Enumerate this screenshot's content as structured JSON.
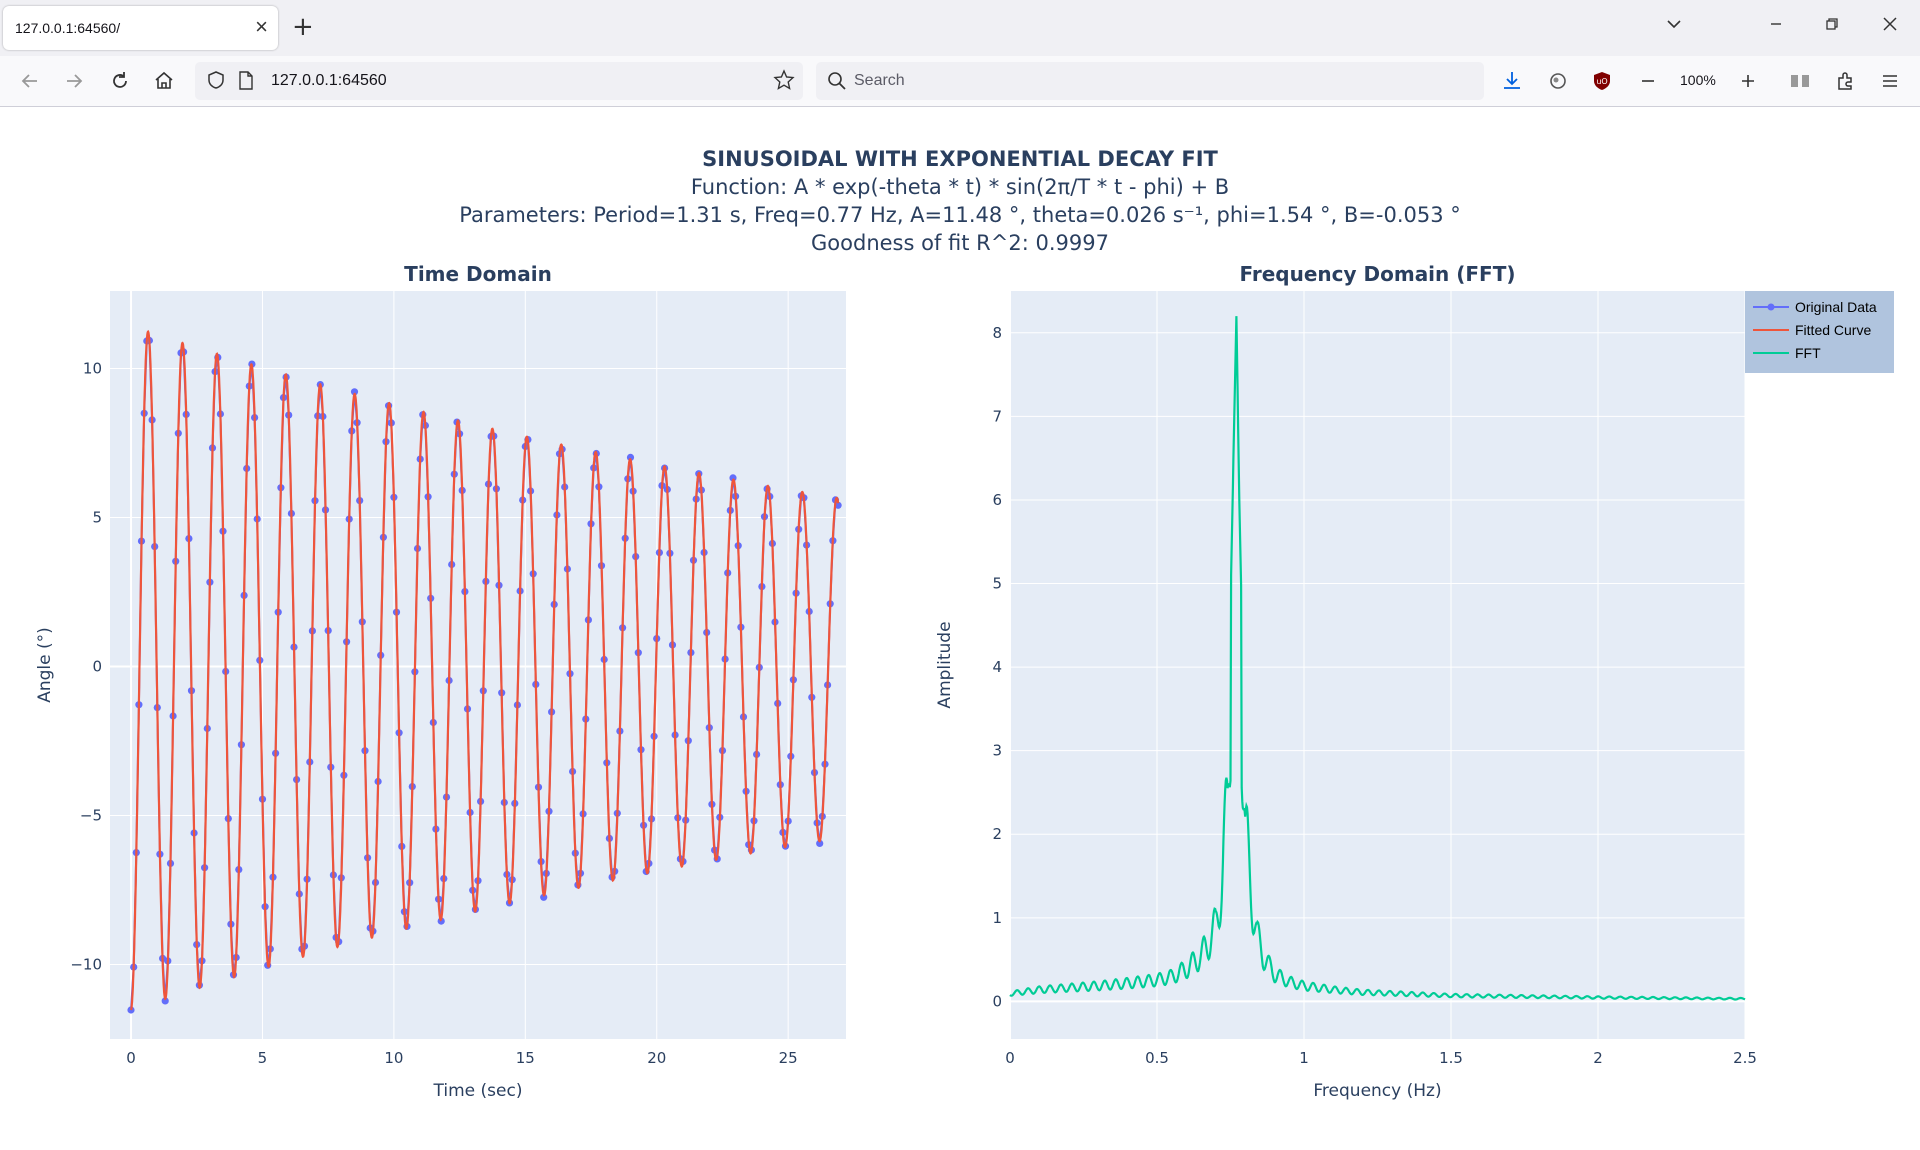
{
  "browser": {
    "tab_title": "127.0.0.1:64560/",
    "url": "127.0.0.1:64560",
    "search_placeholder": "Search",
    "zoom": "100%"
  },
  "page": {
    "title": "SINUSOIDAL WITH EXPONENTIAL DECAY FIT",
    "function_line": "Function: A * exp(-theta * t) * sin(2π/T * t - phi) + B",
    "parameters_line": "Parameters: Period=1.31 s, Freq=0.77 Hz, A=11.48 °, theta=0.026 s⁻¹, phi=1.54 °, B=-0.053 °",
    "fit_line": "Goodness of fit R^2: 0.9997"
  },
  "legend": {
    "items": [
      {
        "label": "Original Data",
        "color": "#636efa",
        "marker": true
      },
      {
        "label": "Fitted Curve",
        "color": "#ef553b",
        "marker": false
      },
      {
        "label": "FFT",
        "color": "#00cc96",
        "marker": false
      }
    ]
  },
  "chart_data": [
    {
      "type": "line",
      "title": "Time Domain",
      "xlabel": "Time (sec)",
      "ylabel": "Angle (°)",
      "xlim": [
        -0.8,
        27.2
      ],
      "ylim": [
        -12.5,
        12.6
      ],
      "xticks": [
        0,
        5,
        10,
        15,
        20,
        25
      ],
      "xtick_labels": [
        "0",
        "5",
        "10",
        "15",
        "20",
        "25"
      ],
      "yticks": [
        -10,
        -5,
        0,
        5,
        10
      ],
      "ytick_labels": [
        "−10",
        "−5",
        "0",
        "5",
        "10"
      ],
      "t_start": 0,
      "t_end": 26.9,
      "sample_step": 0.1,
      "model": {
        "A": 11.48,
        "period": 1.31,
        "theta": 0.026,
        "phi": 1.54,
        "B": -0.053
      },
      "series": [
        {
          "name": "Original Data",
          "color": "#636efa",
          "mode": "lines+markers"
        },
        {
          "name": "Fitted Curve",
          "color": "#ef553b",
          "mode": "lines"
        }
      ]
    },
    {
      "type": "line",
      "title": "Frequency Domain (FFT)",
      "xlabel": "Frequency (Hz)",
      "ylabel": "Amplitude",
      "xlim": [
        0,
        2.5
      ],
      "ylim": [
        -0.45,
        8.5
      ],
      "xticks": [
        0,
        0.5,
        1,
        1.5,
        2,
        2.5
      ],
      "xtick_labels": [
        "0",
        "0.5",
        "1",
        "1.5",
        "2",
        "2.5"
      ],
      "yticks": [
        0,
        1,
        2,
        3,
        4,
        5,
        6,
        7,
        8
      ],
      "ytick_labels": [
        "0",
        "1",
        "2",
        "3",
        "4",
        "5",
        "6",
        "7",
        "8"
      ],
      "series": [
        {
          "name": "FFT",
          "color": "#00cc96",
          "x": [
            0,
            0.1,
            0.2,
            0.3,
            0.4,
            0.5,
            0.55,
            0.6,
            0.65,
            0.68,
            0.7,
            0.72,
            0.74,
            0.76,
            0.77,
            0.78,
            0.8,
            0.82,
            0.84,
            0.86,
            0.88,
            0.9,
            0.95,
            1.0,
            1.1,
            1.2,
            1.5,
            2.0,
            2.5
          ],
          "values": [
            0.12,
            0.18,
            0.21,
            0.24,
            0.28,
            0.33,
            0.38,
            0.5,
            0.7,
            0.95,
            1.15,
            1.85,
            3.0,
            6.5,
            8.2,
            6.0,
            2.6,
            1.72,
            1.0,
            0.72,
            0.55,
            0.42,
            0.3,
            0.24,
            0.18,
            0.14,
            0.09,
            0.06,
            0.04
          ]
        }
      ]
    }
  ]
}
